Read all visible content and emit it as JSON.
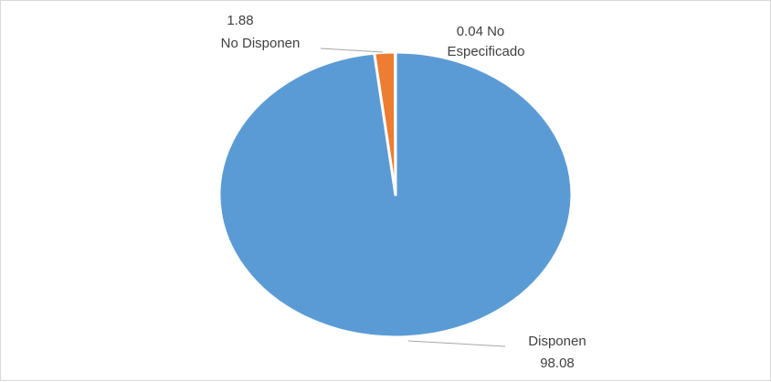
{
  "chart_data": {
    "type": "pie",
    "title": "",
    "slices": [
      {
        "label": "Disponen",
        "value": 98.08,
        "value_text": "98.08",
        "color": "#5b9bd5"
      },
      {
        "label": "No Disponen",
        "value": 1.88,
        "value_text": "1.88",
        "color": "#ed7d31"
      },
      {
        "label": "No Especificado",
        "value": 0.04,
        "value_text": "0.04",
        "color": "#a5a5a5"
      }
    ],
    "data_labels": {
      "disponen": {
        "name": "Disponen",
        "value": "98.08"
      },
      "no_disponen": {
        "name": "No Disponen",
        "value": "1.88"
      },
      "no_especificado": {
        "value_name": "0.04 No",
        "name_rest": "Especificado"
      }
    },
    "legend": "none"
  }
}
